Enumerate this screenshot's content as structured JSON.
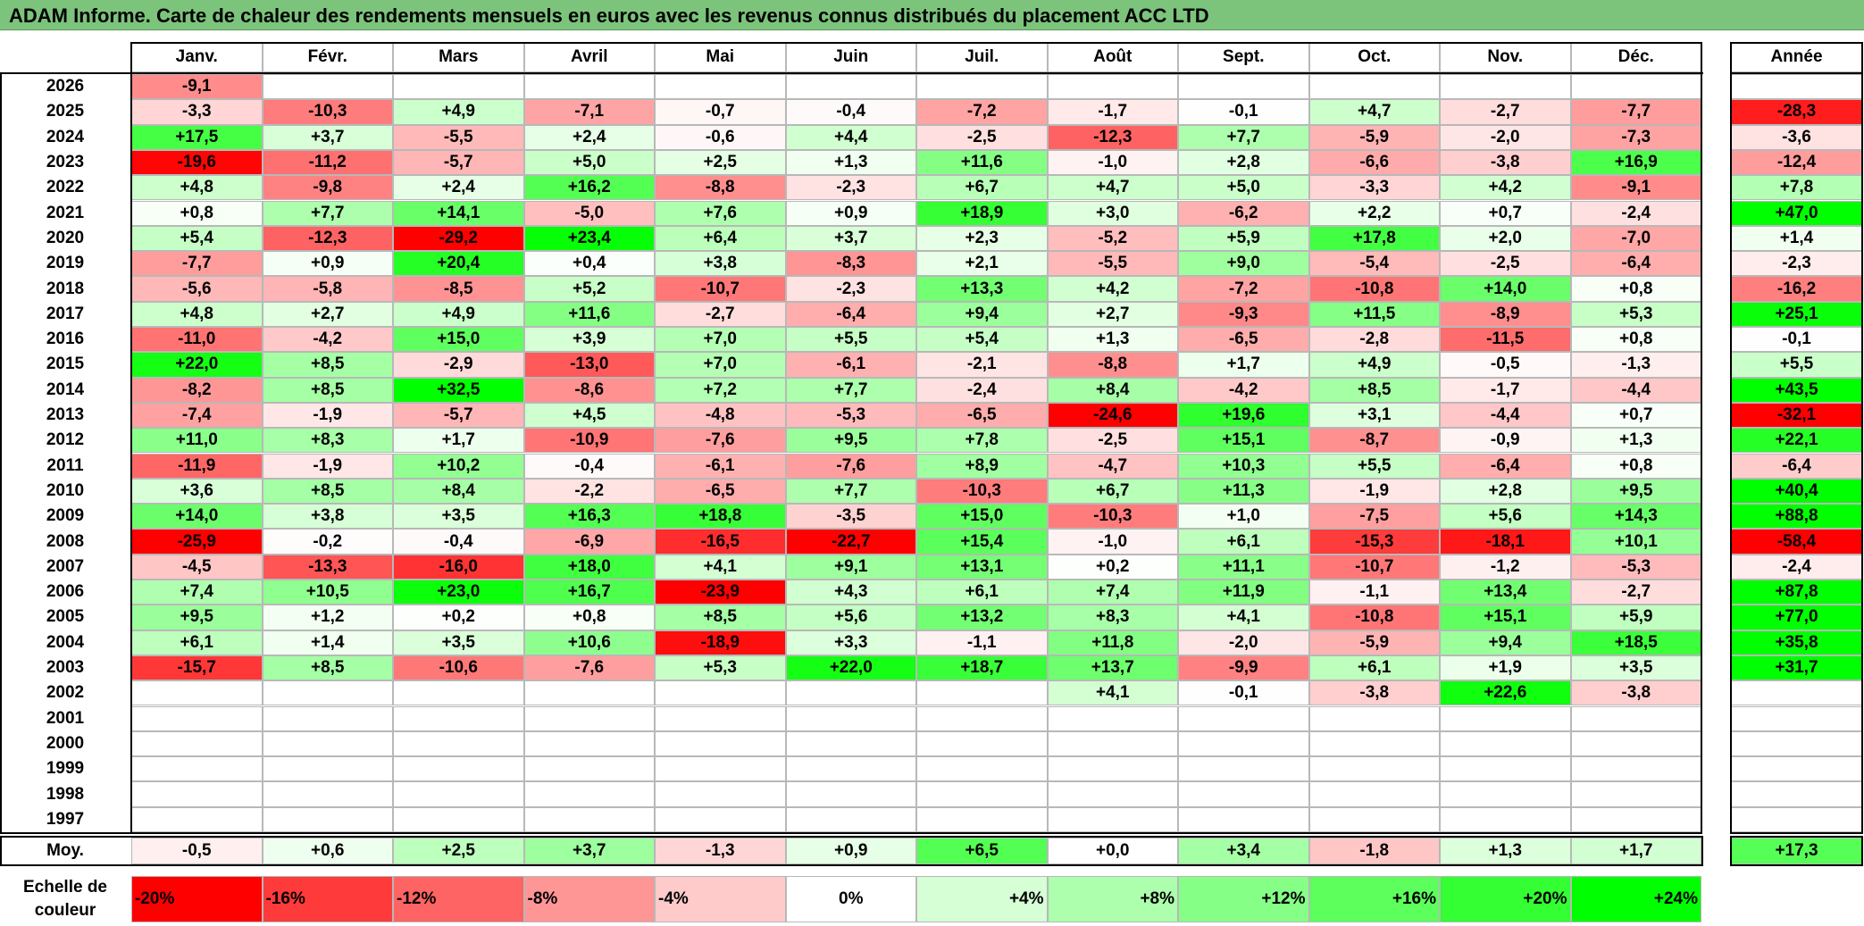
{
  "title": "ADAM Informe. Carte de chaleur des rendements mensuels en euros avec les revenus connus distribués du placement ACC LTD",
  "chart_data": {
    "type": "heatmap",
    "months": [
      "Janv.",
      "Févr.",
      "Mars",
      "Avril",
      "Mai",
      "Juin",
      "Juil.",
      "Août",
      "Sept.",
      "Oct.",
      "Nov.",
      "Déc."
    ],
    "annual_label": "Année",
    "rows": [
      {
        "year": "2026",
        "values": [
          "-9,1",
          "",
          "",
          "",
          "",
          "",
          "",
          "",
          "",
          "",
          "",
          ""
        ],
        "annual": ""
      },
      {
        "year": "2025",
        "values": [
          "-3,3",
          "-10,3",
          "+4,9",
          "-7,1",
          "-0,7",
          "-0,4",
          "-7,2",
          "-1,7",
          "-0,1",
          "+4,7",
          "-2,7",
          "-7,7"
        ],
        "annual": "-28,3"
      },
      {
        "year": "2024",
        "values": [
          "+17,5",
          "+3,7",
          "-5,5",
          "+2,4",
          "-0,6",
          "+4,4",
          "-2,5",
          "-12,3",
          "+7,7",
          "-5,9",
          "-2,0",
          "-7,3"
        ],
        "annual": "-3,6"
      },
      {
        "year": "2023",
        "values": [
          "-19,6",
          "-11,2",
          "-5,7",
          "+5,0",
          "+2,5",
          "+1,3",
          "+11,6",
          "-1,0",
          "+2,8",
          "-6,6",
          "-3,8",
          "+16,9"
        ],
        "annual": "-12,4"
      },
      {
        "year": "2022",
        "values": [
          "+4,8",
          "-9,8",
          "+2,4",
          "+16,2",
          "-8,8",
          "-2,3",
          "+6,7",
          "+4,7",
          "+5,0",
          "-3,3",
          "+4,2",
          "-9,1"
        ],
        "annual": "+7,8"
      },
      {
        "year": "2021",
        "values": [
          "+0,8",
          "+7,7",
          "+14,1",
          "-5,0",
          "+7,6",
          "+0,9",
          "+18,9",
          "+3,0",
          "-6,2",
          "+2,2",
          "+0,7",
          "-2,4"
        ],
        "annual": "+47,0"
      },
      {
        "year": "2020",
        "values": [
          "+5,4",
          "-12,3",
          "-29,2",
          "+23,4",
          "+6,4",
          "+3,7",
          "+2,3",
          "-5,2",
          "+5,9",
          "+17,8",
          "+2,0",
          "-7,0"
        ],
        "annual": "+1,4"
      },
      {
        "year": "2019",
        "values": [
          "-7,7",
          "+0,9",
          "+20,4",
          "+0,4",
          "+3,8",
          "-8,3",
          "+2,1",
          "-5,5",
          "+9,0",
          "-5,4",
          "-2,5",
          "-6,4"
        ],
        "annual": "-2,3"
      },
      {
        "year": "2018",
        "values": [
          "-5,6",
          "-5,8",
          "-8,5",
          "+5,2",
          "-10,7",
          "-2,3",
          "+13,3",
          "+4,2",
          "-7,2",
          "-10,8",
          "+14,0",
          "+0,8"
        ],
        "annual": "-16,2"
      },
      {
        "year": "2017",
        "values": [
          "+4,8",
          "+2,7",
          "+4,9",
          "+11,6",
          "-2,7",
          "-6,4",
          "+9,4",
          "+2,7",
          "-9,3",
          "+11,5",
          "-8,9",
          "+5,3"
        ],
        "annual": "+25,1"
      },
      {
        "year": "2016",
        "values": [
          "-11,0",
          "-4,2",
          "+15,0",
          "+3,9",
          "+7,0",
          "+5,5",
          "+5,4",
          "+1,3",
          "-6,5",
          "-2,8",
          "-11,5",
          "+0,8"
        ],
        "annual": "-0,1"
      },
      {
        "year": "2015",
        "values": [
          "+22,0",
          "+8,5",
          "-2,9",
          "-13,0",
          "+7,0",
          "-6,1",
          "-2,1",
          "-8,8",
          "+1,7",
          "+4,9",
          "-0,5",
          "-1,3"
        ],
        "annual": "+5,5"
      },
      {
        "year": "2014",
        "values": [
          "-8,2",
          "+8,5",
          "+32,5",
          "-8,6",
          "+7,2",
          "+7,7",
          "-2,4",
          "+8,4",
          "-4,2",
          "+8,5",
          "-1,7",
          "-4,4"
        ],
        "annual": "+43,5"
      },
      {
        "year": "2013",
        "values": [
          "-7,4",
          "-1,9",
          "-5,7",
          "+4,5",
          "-4,8",
          "-5,3",
          "-6,5",
          "-24,6",
          "+19,6",
          "+3,1",
          "-4,4",
          "+0,7"
        ],
        "annual": "-32,1"
      },
      {
        "year": "2012",
        "values": [
          "+11,0",
          "+8,3",
          "+1,7",
          "-10,9",
          "-7,6",
          "+9,5",
          "+7,8",
          "-2,5",
          "+15,1",
          "-8,7",
          "-0,9",
          "+1,3"
        ],
        "annual": "+22,1"
      },
      {
        "year": "2011",
        "values": [
          "-11,9",
          "-1,9",
          "+10,2",
          "-0,4",
          "-6,1",
          "-7,6",
          "+8,9",
          "-4,7",
          "+10,3",
          "+5,5",
          "-6,4",
          "+0,8"
        ],
        "annual": "-6,4"
      },
      {
        "year": "2010",
        "values": [
          "+3,6",
          "+8,5",
          "+8,4",
          "-2,2",
          "-6,5",
          "+7,7",
          "-10,3",
          "+6,7",
          "+11,3",
          "-1,9",
          "+2,8",
          "+9,5"
        ],
        "annual": "+40,4"
      },
      {
        "year": "2009",
        "values": [
          "+14,0",
          "+3,8",
          "+3,5",
          "+16,3",
          "+18,8",
          "-3,5",
          "+15,0",
          "-10,3",
          "+1,0",
          "-7,5",
          "+5,6",
          "+14,3"
        ],
        "annual": "+88,8"
      },
      {
        "year": "2008",
        "values": [
          "-25,9",
          "-0,2",
          "-0,4",
          "-6,9",
          "-16,5",
          "-22,7",
          "+15,4",
          "-1,0",
          "+6,1",
          "-15,3",
          "-18,1",
          "+10,1"
        ],
        "annual": "-58,4"
      },
      {
        "year": "2007",
        "values": [
          "-4,5",
          "-13,3",
          "-16,0",
          "+18,0",
          "+4,1",
          "+9,1",
          "+13,1",
          "+0,2",
          "+11,1",
          "-10,7",
          "-1,2",
          "-5,3"
        ],
        "annual": "-2,4"
      },
      {
        "year": "2006",
        "values": [
          "+7,4",
          "+10,5",
          "+23,0",
          "+16,7",
          "-23,9",
          "+4,3",
          "+6,1",
          "+7,4",
          "+11,9",
          "-1,1",
          "+13,4",
          "-2,7"
        ],
        "annual": "+87,8"
      },
      {
        "year": "2005",
        "values": [
          "+9,5",
          "+1,2",
          "+0,2",
          "+0,8",
          "+8,5",
          "+5,6",
          "+13,2",
          "+8,3",
          "+4,1",
          "-10,8",
          "+15,1",
          "+5,9"
        ],
        "annual": "+77,0"
      },
      {
        "year": "2004",
        "values": [
          "+6,1",
          "+1,4",
          "+3,5",
          "+10,6",
          "-18,9",
          "+3,3",
          "-1,1",
          "+11,8",
          "-2,0",
          "-5,9",
          "+9,4",
          "+18,5"
        ],
        "annual": "+35,8"
      },
      {
        "year": "2003",
        "values": [
          "-15,7",
          "+8,5",
          "-10,6",
          "-7,6",
          "+5,3",
          "+22,0",
          "+18,7",
          "+13,7",
          "-9,9",
          "+6,1",
          "+1,9",
          "+3,5"
        ],
        "annual": "+31,7"
      },
      {
        "year": "2002",
        "values": [
          "",
          "",
          "",
          "",
          "",
          "",
          "",
          "+4,1",
          "-0,1",
          "-3,8",
          "+22,6",
          "-3,8"
        ],
        "annual": ""
      },
      {
        "year": "2001",
        "values": [
          "",
          "",
          "",
          "",
          "",
          "",
          "",
          "",
          "",
          "",
          "",
          ""
        ],
        "annual": ""
      },
      {
        "year": "2000",
        "values": [
          "",
          "",
          "",
          "",
          "",
          "",
          "",
          "",
          "",
          "",
          "",
          ""
        ],
        "annual": ""
      },
      {
        "year": "1999",
        "values": [
          "",
          "",
          "",
          "",
          "",
          "",
          "",
          "",
          "",
          "",
          "",
          ""
        ],
        "annual": ""
      },
      {
        "year": "1998",
        "values": [
          "",
          "",
          "",
          "",
          "",
          "",
          "",
          "",
          "",
          "",
          "",
          ""
        ],
        "annual": ""
      },
      {
        "year": "1997",
        "values": [
          "",
          "",
          "",
          "",
          "",
          "",
          "",
          "",
          "",
          "",
          "",
          ""
        ],
        "annual": ""
      }
    ],
    "average": {
      "label": "Moy.",
      "values": [
        "-0,5",
        "+0,6",
        "+2,5",
        "+3,7",
        "-1,3",
        "+0,9",
        "+6,5",
        "+0,0",
        "+3,4",
        "-1,8",
        "+1,3",
        "+1,7"
      ],
      "annual": "+17,3"
    },
    "color_scale": {
      "label_line1": "Echelle de",
      "label_line2": "couleur",
      "stops": [
        {
          "label": "-20%",
          "value": -20,
          "color": "#ff0000",
          "align": "left"
        },
        {
          "label": "-16%",
          "value": -16,
          "color": "#ff3a3a",
          "align": "left"
        },
        {
          "label": "-12%",
          "value": -12,
          "color": "#ff6464",
          "align": "left"
        },
        {
          "label": "-8%",
          "value": -8,
          "color": "#ff9696",
          "align": "left"
        },
        {
          "label": "-4%",
          "value": -4,
          "color": "#ffcaca",
          "align": "left"
        },
        {
          "label": "0%",
          "value": 0,
          "color": "#ffffff",
          "align": "center"
        },
        {
          "label": "+4%",
          "value": 4,
          "color": "#d6ffd6",
          "align": "right"
        },
        {
          "label": "+8%",
          "value": 8,
          "color": "#adffad",
          "align": "right"
        },
        {
          "label": "+12%",
          "value": 12,
          "color": "#86ff86",
          "align": "right"
        },
        {
          "label": "+16%",
          "value": 16,
          "color": "#5cff5c",
          "align": "right"
        },
        {
          "label": "+20%",
          "value": 20,
          "color": "#33ff33",
          "align": "right"
        },
        {
          "label": "+24%",
          "value": 24,
          "color": "#00ff00",
          "align": "right"
        }
      ]
    }
  }
}
